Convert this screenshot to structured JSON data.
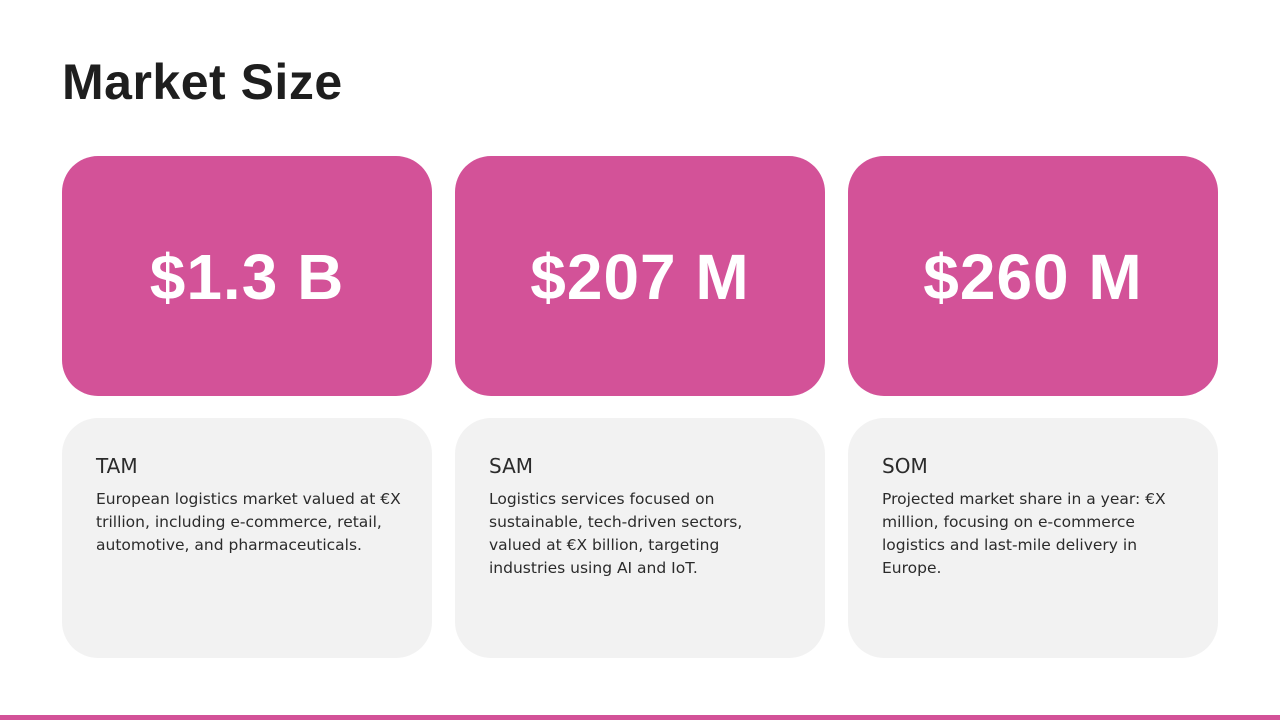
{
  "title": "Market Size",
  "colors": {
    "accent": "#d35298",
    "card_background": "#f2f2f2",
    "title_text": "#1e1e1e",
    "value_text": "#ffffff"
  },
  "cards": [
    {
      "value": "$1.3 B",
      "heading": "TAM",
      "description": "European logistics market valued at €X trillion, including e-commerce, retail, automotive, and pharmaceuticals."
    },
    {
      "value": "$207 M",
      "heading": "SAM",
      "description": "Logistics services focused on sustainable, tech-driven sectors, valued at €X billion, targeting industries using AI and IoT."
    },
    {
      "value": "$260 M",
      "heading": "SOM",
      "description": "Projected market share in a year: €X million, focusing on e-commerce logistics and last-mile delivery in Europe."
    }
  ]
}
